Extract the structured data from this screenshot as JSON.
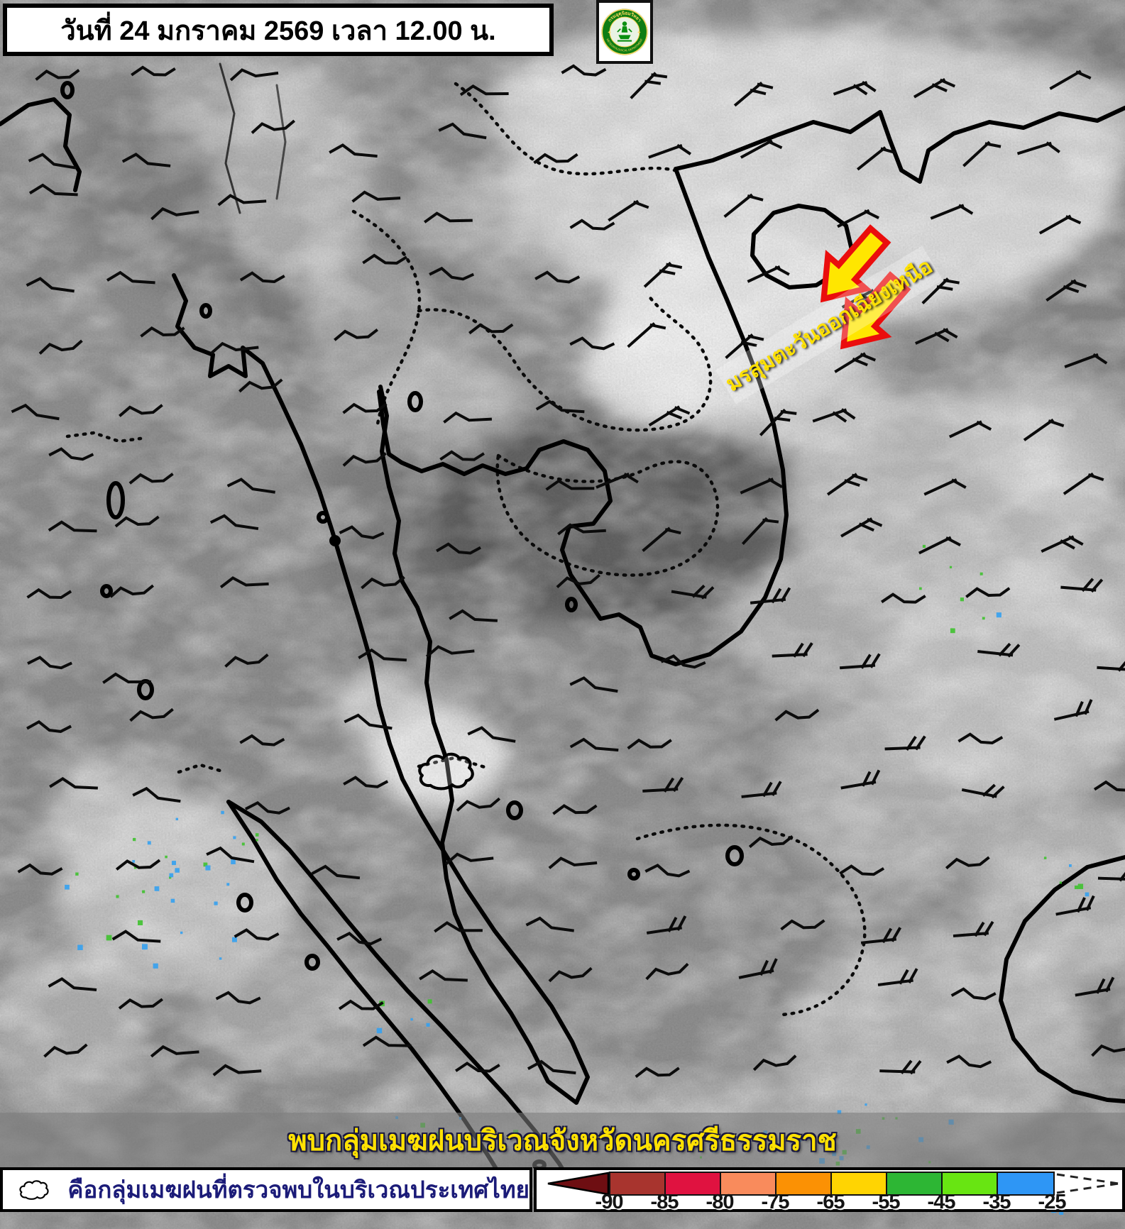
{
  "title_bar": {
    "text": "วันที่ 24 มกราคม 2569 เวลา 12.00 น."
  },
  "logo": {
    "top_text": "กรมอุตุนิยมวิทยา",
    "bottom_text": "METEOROLOGICAL DEPARTMENT"
  },
  "map": {
    "monsoon_label": "มรสุมตะวันออกเฉียงเหนือ",
    "announcement": "พบกลุ่มเมฆฝนบริเวณจังหวัดนครศรีธรรมราช"
  },
  "legend": {
    "cloud_caption": "คือกลุ่มเมฆฝนที่ตรวจพบในบริเวณประเทศไทย",
    "scale": {
      "tick_labels": [
        "-90",
        "-85",
        "-80",
        "-75",
        "-65",
        "-55",
        "-45",
        "-35",
        "-25"
      ],
      "segment_colors": [
        "#A8342E",
        "#E01240",
        "#F98B5C",
        "#FB9104",
        "#FFD402",
        "#2DB634",
        "#68E512",
        "#2E96F5"
      ],
      "arrow_color": "#6E0E12"
    }
  },
  "colors": {
    "wind_arrow_fill": "#FFE600",
    "wind_arrow_stroke": "#EA0D0D",
    "accent_yellow": "#FFE103",
    "legend_text_blue": "#1B1B78"
  }
}
